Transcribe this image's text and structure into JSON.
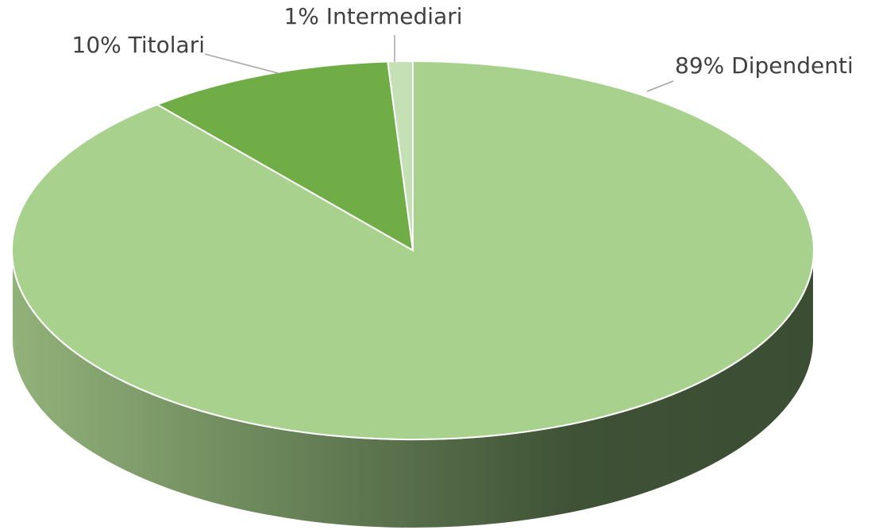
{
  "chart_data": {
    "type": "pie",
    "style": "3d",
    "categories": [
      "Dipendenti",
      "Titolari",
      "Intermediari"
    ],
    "values": [
      89,
      10,
      1
    ],
    "value_labels": [
      "89%",
      "10%",
      "1%"
    ],
    "colors": [
      "#a9d18e",
      "#70ad47",
      "#c5e0b4"
    ]
  }
}
